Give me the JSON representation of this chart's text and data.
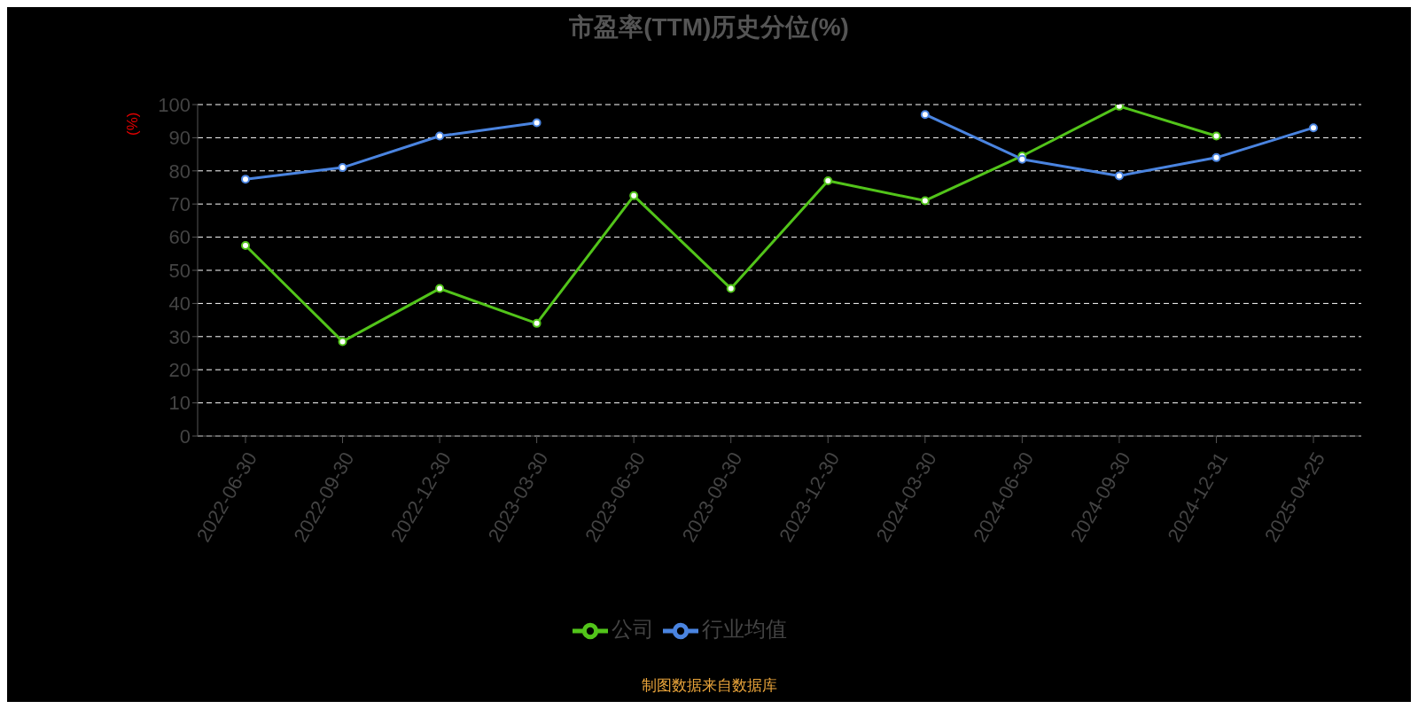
{
  "chart_data": {
    "type": "line",
    "title": "市盈率(TTM)历史分位(%)",
    "ylabel": "(%)",
    "categories": [
      "2022-06-30",
      "2022-09-30",
      "2022-12-30",
      "2023-03-30",
      "2023-06-30",
      "2023-09-30",
      "2023-12-30",
      "2024-03-30",
      "2024-06-30",
      "2024-09-30",
      "2024-12-31",
      "2025-04-25"
    ],
    "series": [
      {
        "name": "公司",
        "color": "#52c41a",
        "values": [
          57.5,
          28.5,
          44.5,
          34,
          72.5,
          44.5,
          77,
          71,
          84.5,
          99.5,
          90.5,
          null
        ]
      },
      {
        "name": "行业均值",
        "color": "#4a84e0",
        "values": [
          77.5,
          81,
          90.5,
          94.5,
          null,
          null,
          null,
          97,
          83.5,
          78.5,
          84,
          93
        ]
      }
    ],
    "ylim": [
      0,
      100
    ],
    "yticks": [
      0,
      10,
      20,
      30,
      40,
      50,
      60,
      70,
      80,
      90,
      100
    ],
    "grid": "y",
    "legend": "bottom",
    "marker": "circle",
    "line_style": "solid",
    "annotations": [
      "制图数据来自数据库"
    ]
  }
}
